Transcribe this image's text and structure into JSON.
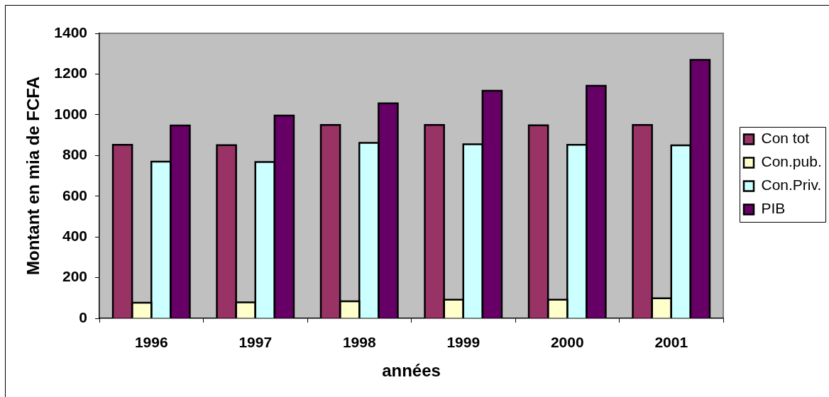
{
  "chart_data": {
    "type": "bar",
    "xlabel": "années",
    "ylabel": "Montant en mia de FCFA",
    "categories": [
      "1996",
      "1997",
      "1998",
      "1999",
      "2000",
      "2001"
    ],
    "series": [
      {
        "name": "Con tot",
        "color": "#993366",
        "values": [
          852,
          851,
          950,
          950,
          948,
          950
        ]
      },
      {
        "name": "Con.pub.",
        "color": "#ffffcc",
        "values": [
          77,
          78,
          84,
          91,
          91,
          98
        ]
      },
      {
        "name": "Con.Priv.",
        "color": "#ccffff",
        "values": [
          770,
          768,
          862,
          855,
          852,
          850
        ]
      },
      {
        "name": "PIB",
        "color": "#660066",
        "values": [
          947,
          996,
          1056,
          1118,
          1142,
          1269
        ]
      }
    ],
    "ylim": [
      0,
      1400
    ],
    "yticks": [
      0,
      200,
      400,
      600,
      800,
      1000,
      1200,
      1400
    ],
    "legend": "right"
  }
}
